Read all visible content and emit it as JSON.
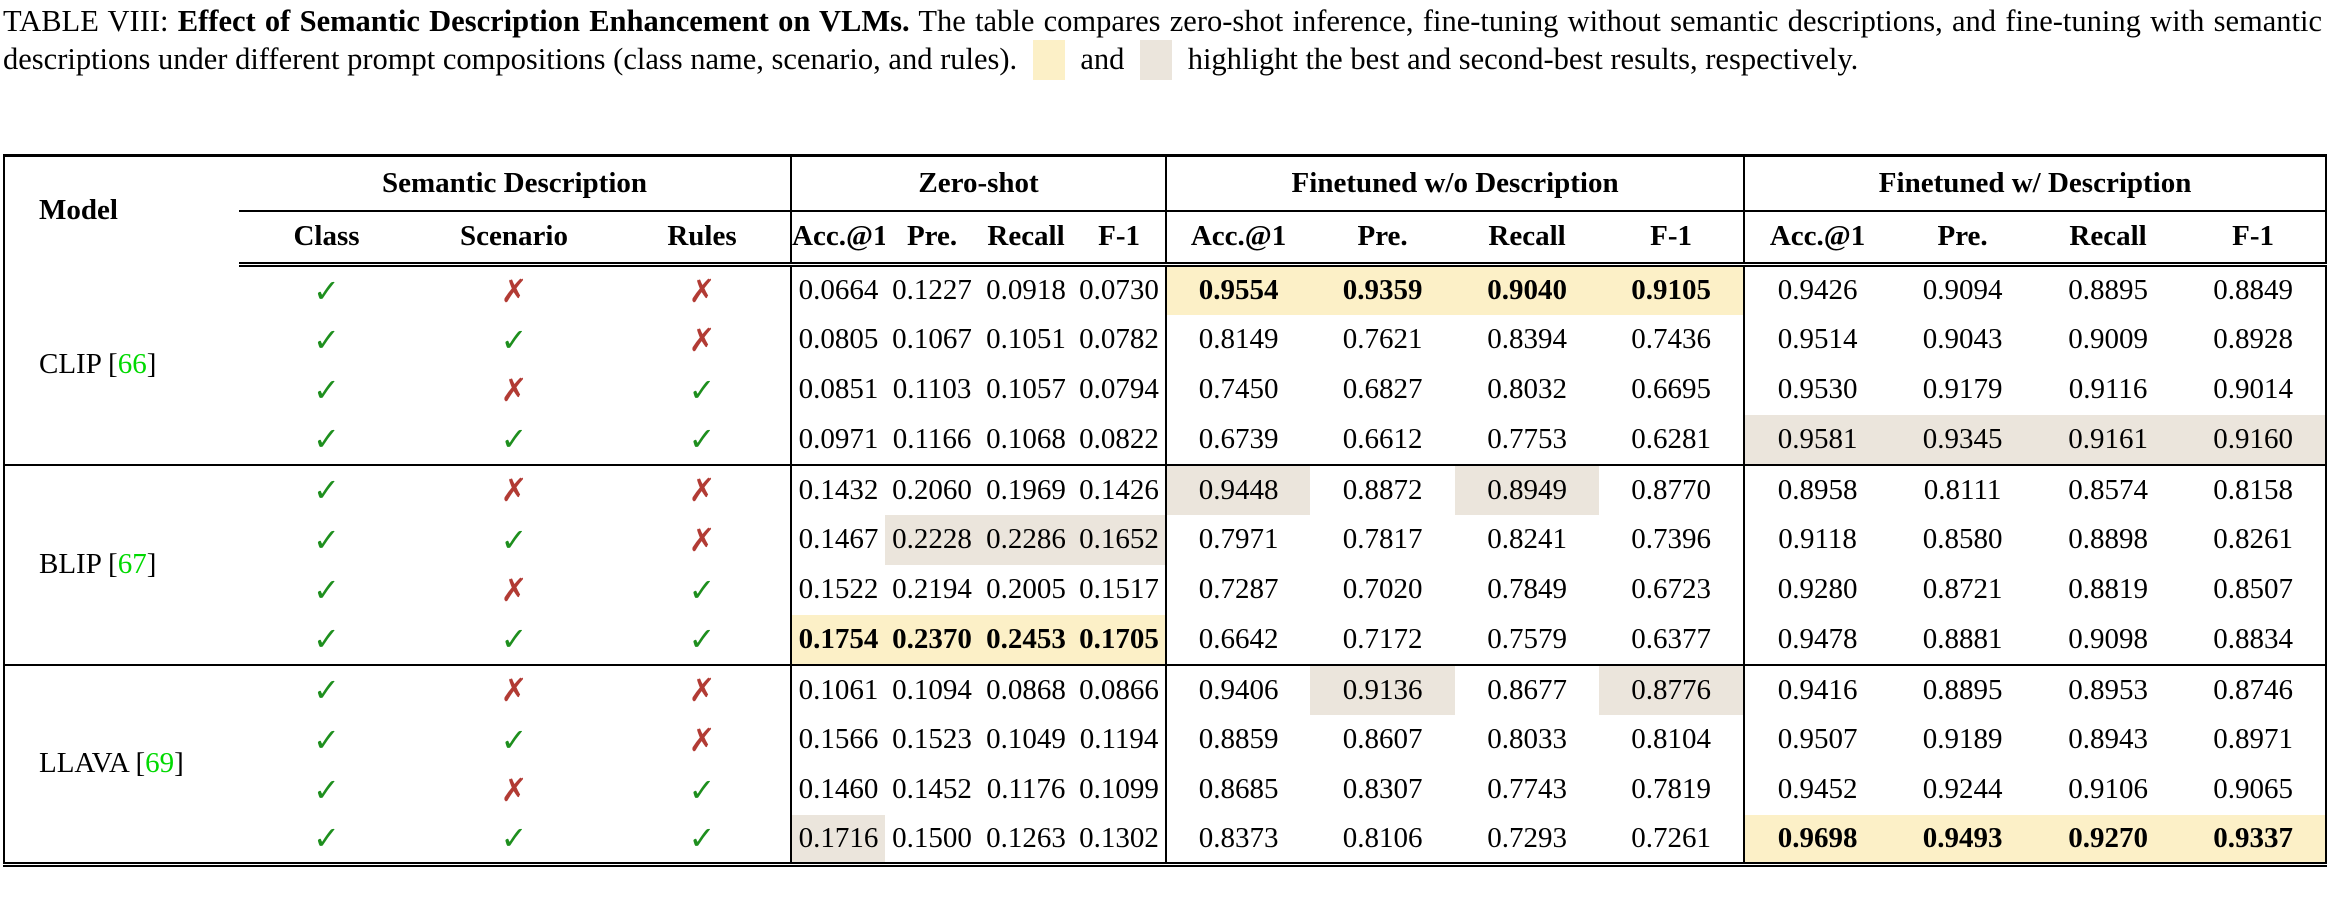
{
  "colors": {
    "best_highlight": "#FCF0C7",
    "second_highlight": "#EBE5DC",
    "check_green": "#1E8F1E",
    "cross_red": "#B23B34",
    "citation_green": "#00D900"
  },
  "caption": {
    "label": "TABLE VIII: ",
    "title": "Effect of Semantic Description Enhancement on VLMs.",
    "body": " The table compares zero-shot inference, fine-tuning without semantic descriptions, and fine-tuning with semantic descriptions under different prompt compositions (class name, scenario, and rules). ",
    "legend_and": " and ",
    "legend_tail": " highlight the best and second-best results, respectively."
  },
  "table": {
    "header": {
      "model": "Model",
      "semantic": "Semantic Description",
      "zero_shot": "Zero-shot",
      "ft_wo": "Finetuned w/o Description",
      "ft_w": "Finetuned w/ Description",
      "sub_semantic": [
        "Class",
        "Scenario",
        "Rules"
      ],
      "sub_metrics": [
        "Acc.@1",
        "Pre.",
        "Recall",
        "F-1"
      ]
    },
    "groups": [
      {
        "model": "CLIP",
        "cite_prefix": "[",
        "cite_number": "66",
        "cite_suffix": "]",
        "rows": [
          {
            "marks": [
              "✓",
              "✗",
              "✗"
            ],
            "zs": [
              "0.0664",
              "0.1227",
              "0.0918",
              "0.0730"
            ],
            "zs_hl": [
              "",
              "",
              "",
              ""
            ],
            "wo": [
              "0.9554",
              "0.9359",
              "0.9040",
              "0.9105"
            ],
            "wo_hl": [
              "best",
              "best",
              "best",
              "best"
            ],
            "w": [
              "0.9426",
              "0.9094",
              "0.8895",
              "0.8849"
            ],
            "w_hl": [
              "",
              "",
              "",
              ""
            ]
          },
          {
            "marks": [
              "✓",
              "✓",
              "✗"
            ],
            "zs": [
              "0.0805",
              "0.1067",
              "0.1051",
              "0.0782"
            ],
            "zs_hl": [
              "",
              "",
              "",
              ""
            ],
            "wo": [
              "0.8149",
              "0.7621",
              "0.8394",
              "0.7436"
            ],
            "wo_hl": [
              "",
              "",
              "",
              ""
            ],
            "w": [
              "0.9514",
              "0.9043",
              "0.9009",
              "0.8928"
            ],
            "w_hl": [
              "",
              "",
              "",
              ""
            ]
          },
          {
            "marks": [
              "✓",
              "✗",
              "✓"
            ],
            "zs": [
              "0.0851",
              "0.1103",
              "0.1057",
              "0.0794"
            ],
            "zs_hl": [
              "",
              "",
              "",
              ""
            ],
            "wo": [
              "0.7450",
              "0.6827",
              "0.8032",
              "0.6695"
            ],
            "wo_hl": [
              "",
              "",
              "",
              ""
            ],
            "w": [
              "0.9530",
              "0.9179",
              "0.9116",
              "0.9014"
            ],
            "w_hl": [
              "",
              "",
              "",
              ""
            ]
          },
          {
            "marks": [
              "✓",
              "✓",
              "✓"
            ],
            "zs": [
              "0.0971",
              "0.1166",
              "0.1068",
              "0.0822"
            ],
            "zs_hl": [
              "",
              "",
              "",
              ""
            ],
            "wo": [
              "0.6739",
              "0.6612",
              "0.7753",
              "0.6281"
            ],
            "wo_hl": [
              "",
              "",
              "",
              ""
            ],
            "w": [
              "0.9581",
              "0.9345",
              "0.9161",
              "0.9160"
            ],
            "w_hl": [
              "second",
              "second",
              "second",
              "second"
            ]
          }
        ]
      },
      {
        "model": "BLIP",
        "cite_prefix": "[",
        "cite_number": "67",
        "cite_suffix": "]",
        "rows": [
          {
            "marks": [
              "✓",
              "✗",
              "✗"
            ],
            "zs": [
              "0.1432",
              "0.2060",
              "0.1969",
              "0.1426"
            ],
            "zs_hl": [
              "",
              "",
              "",
              ""
            ],
            "wo": [
              "0.9448",
              "0.8872",
              "0.8949",
              "0.8770"
            ],
            "wo_hl": [
              "second",
              "",
              "second",
              ""
            ],
            "w": [
              "0.8958",
              "0.8111",
              "0.8574",
              "0.8158"
            ],
            "w_hl": [
              "",
              "",
              "",
              ""
            ]
          },
          {
            "marks": [
              "✓",
              "✓",
              "✗"
            ],
            "zs": [
              "0.1467",
              "0.2228",
              "0.2286",
              "0.1652"
            ],
            "zs_hl": [
              "",
              "second",
              "second",
              "second"
            ],
            "wo": [
              "0.7971",
              "0.7817",
              "0.8241",
              "0.7396"
            ],
            "wo_hl": [
              "",
              "",
              "",
              ""
            ],
            "w": [
              "0.9118",
              "0.8580",
              "0.8898",
              "0.8261"
            ],
            "w_hl": [
              "",
              "",
              "",
              ""
            ]
          },
          {
            "marks": [
              "✓",
              "✗",
              "✓"
            ],
            "zs": [
              "0.1522",
              "0.2194",
              "0.2005",
              "0.1517"
            ],
            "zs_hl": [
              "",
              "",
              "",
              ""
            ],
            "wo": [
              "0.7287",
              "0.7020",
              "0.7849",
              "0.6723"
            ],
            "wo_hl": [
              "",
              "",
              "",
              ""
            ],
            "w": [
              "0.9280",
              "0.8721",
              "0.8819",
              "0.8507"
            ],
            "w_hl": [
              "",
              "",
              "",
              ""
            ]
          },
          {
            "marks": [
              "✓",
              "✓",
              "✓"
            ],
            "zs": [
              "0.1754",
              "0.2370",
              "0.2453",
              "0.1705"
            ],
            "zs_hl": [
              "best",
              "best",
              "best",
              "best"
            ],
            "wo": [
              "0.6642",
              "0.7172",
              "0.7579",
              "0.6377"
            ],
            "wo_hl": [
              "",
              "",
              "",
              ""
            ],
            "w": [
              "0.9478",
              "0.8881",
              "0.9098",
              "0.8834"
            ],
            "w_hl": [
              "",
              "",
              "",
              ""
            ]
          }
        ]
      },
      {
        "model": "LLAVA",
        "cite_prefix": "[",
        "cite_number": "69",
        "cite_suffix": "]",
        "rows": [
          {
            "marks": [
              "✓",
              "✗",
              "✗"
            ],
            "zs": [
              "0.1061",
              "0.1094",
              "0.0868",
              "0.0866"
            ],
            "zs_hl": [
              "",
              "",
              "",
              ""
            ],
            "wo": [
              "0.9406",
              "0.9136",
              "0.8677",
              "0.8776"
            ],
            "wo_hl": [
              "",
              "second",
              "",
              "second"
            ],
            "w": [
              "0.9416",
              "0.8895",
              "0.8953",
              "0.8746"
            ],
            "w_hl": [
              "",
              "",
              "",
              ""
            ]
          },
          {
            "marks": [
              "✓",
              "✓",
              "✗"
            ],
            "zs": [
              "0.1566",
              "0.1523",
              "0.1049",
              "0.1194"
            ],
            "zs_hl": [
              "",
              "",
              "",
              ""
            ],
            "wo": [
              "0.8859",
              "0.8607",
              "0.8033",
              "0.8104"
            ],
            "wo_hl": [
              "",
              "",
              "",
              ""
            ],
            "w": [
              "0.9507",
              "0.9189",
              "0.8943",
              "0.8971"
            ],
            "w_hl": [
              "",
              "",
              "",
              ""
            ]
          },
          {
            "marks": [
              "✓",
              "✗",
              "✓"
            ],
            "zs": [
              "0.1460",
              "0.1452",
              "0.1176",
              "0.1099"
            ],
            "zs_hl": [
              "",
              "",
              "",
              ""
            ],
            "wo": [
              "0.8685",
              "0.8307",
              "0.7743",
              "0.7819"
            ],
            "wo_hl": [
              "",
              "",
              "",
              ""
            ],
            "w": [
              "0.9452",
              "0.9244",
              "0.9106",
              "0.9065"
            ],
            "w_hl": [
              "",
              "",
              "",
              ""
            ]
          },
          {
            "marks": [
              "✓",
              "✓",
              "✓"
            ],
            "zs": [
              "0.1716",
              "0.1500",
              "0.1263",
              "0.1302"
            ],
            "zs_hl": [
              "second",
              "",
              "",
              ""
            ],
            "wo": [
              "0.8373",
              "0.8106",
              "0.7293",
              "0.7261"
            ],
            "wo_hl": [
              "",
              "",
              "",
              ""
            ],
            "w": [
              "0.9698",
              "0.9493",
              "0.9270",
              "0.9337"
            ],
            "w_hl": [
              "best",
              "best",
              "best",
              "best"
            ]
          }
        ]
      }
    ]
  }
}
